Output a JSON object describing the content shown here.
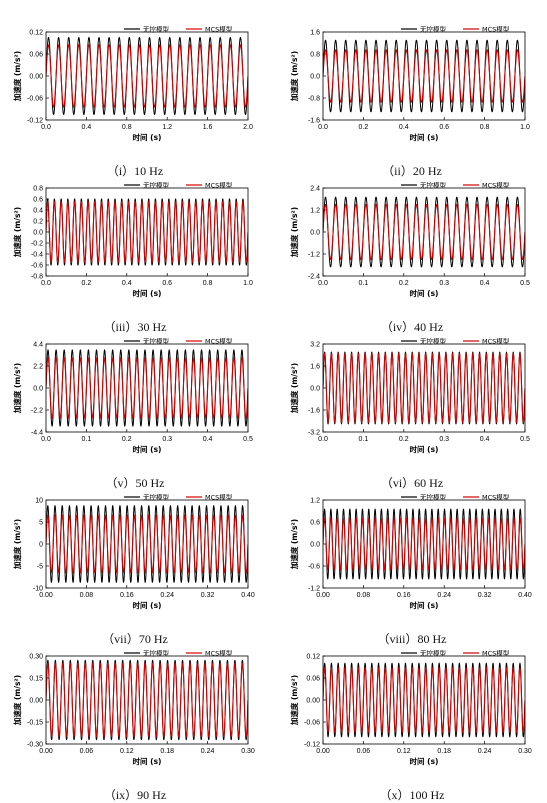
{
  "figure": {
    "legend_colors": {
      "uncontrolled": "#000000",
      "mcs": "#d40000"
    },
    "panels": [
      {
        "caption": "（i）10 Hz",
        "chart_data": {
          "type": "line",
          "title": "",
          "xlabel": "时间 (s)",
          "ylabel": "加速度 (m/s²)",
          "xlim": [
            0,
            2.0
          ],
          "ylim": [
            -0.12,
            0.12
          ],
          "xticks": [
            "0.0",
            "0.4",
            "0.8",
            "1.2",
            "1.6",
            "2.0"
          ],
          "yticks": [
            "-0.12",
            "-0.06",
            "0.00",
            "0.06",
            "0.12"
          ],
          "frequency_hz": 10,
          "series": [
            {
              "name": "无控模型",
              "color": "#000000",
              "amplitude": 0.105
            },
            {
              "name": "MCS模型",
              "color": "#d40000",
              "amplitude": 0.085
            }
          ]
        }
      },
      {
        "caption": "（ii）20 Hz",
        "chart_data": {
          "type": "line",
          "title": "",
          "xlabel": "时间 (s)",
          "ylabel": "加速度 (m/s²)",
          "xlim": [
            0,
            1.0
          ],
          "ylim": [
            -1.6,
            1.6
          ],
          "xticks": [
            "0.0",
            "0.2",
            "0.4",
            "0.6",
            "0.8",
            "1.0"
          ],
          "yticks": [
            "-1.6",
            "-0.8",
            "0.0",
            "0.8",
            "1.6"
          ],
          "frequency_hz": 20,
          "series": [
            {
              "name": "无控模型",
              "color": "#000000",
              "amplitude": 1.3
            },
            {
              "name": "MCS模型",
              "color": "#d40000",
              "amplitude": 0.95
            }
          ]
        }
      },
      {
        "caption": "（iii）30 Hz",
        "chart_data": {
          "type": "line",
          "title": "",
          "xlabel": "时间 (s)",
          "ylabel": "加速度 (m/s²)",
          "xlim": [
            0,
            1.0
          ],
          "ylim": [
            -0.8,
            0.8
          ],
          "xticks": [
            "0.0",
            "0.2",
            "0.4",
            "0.6",
            "0.8",
            "1.0"
          ],
          "yticks": [
            "-0.8",
            "-0.6",
            "-0.4",
            "-0.2",
            "0.0",
            "0.2",
            "0.4",
            "0.6",
            "0.8"
          ],
          "frequency_hz": 30,
          "series": [
            {
              "name": "无控模型",
              "color": "#000000",
              "amplitude": 0.6
            },
            {
              "name": "MCS模型",
              "color": "#d40000",
              "amplitude": 0.55
            }
          ]
        }
      },
      {
        "caption": "（iv）40 Hz",
        "chart_data": {
          "type": "line",
          "title": "",
          "xlabel": "时间 (s)",
          "ylabel": "加速度 (m/s²)",
          "xlim": [
            0,
            0.5
          ],
          "ylim": [
            -2.4,
            2.4
          ],
          "xticks": [
            "0.0",
            "0.1",
            "0.2",
            "0.3",
            "0.4",
            "0.5"
          ],
          "yticks": [
            "-2.4",
            "-1.2",
            "0.0",
            "1.2",
            "2.4"
          ],
          "frequency_hz": 40,
          "series": [
            {
              "name": "无控模型",
              "color": "#000000",
              "amplitude": 1.9
            },
            {
              "name": "MCS模型",
              "color": "#d40000",
              "amplitude": 1.5
            }
          ]
        }
      },
      {
        "caption": "（v）50 Hz",
        "chart_data": {
          "type": "line",
          "title": "",
          "xlabel": "时间 (s)",
          "ylabel": "加速度 (m/s²)",
          "xlim": [
            0,
            0.5
          ],
          "ylim": [
            -4.4,
            4.4
          ],
          "xticks": [
            "0.0",
            "0.1",
            "0.2",
            "0.3",
            "0.4",
            "0.5"
          ],
          "yticks": [
            "-4.4",
            "-2.2",
            "0.0",
            "2.2",
            "4.4"
          ],
          "frequency_hz": 50,
          "series": [
            {
              "name": "无控模型",
              "color": "#000000",
              "amplitude": 3.8
            },
            {
              "name": "MCS模型",
              "color": "#d40000",
              "amplitude": 3.0
            }
          ]
        }
      },
      {
        "caption": "（vi）60 Hz",
        "chart_data": {
          "type": "line",
          "title": "",
          "xlabel": "时间 (s)",
          "ylabel": "加速度 (m/s²)",
          "xlim": [
            0,
            0.5
          ],
          "ylim": [
            -3.2,
            3.2
          ],
          "xticks": [
            "0.0",
            "0.1",
            "0.2",
            "0.3",
            "0.4",
            "0.5"
          ],
          "yticks": [
            "-3.2",
            "-1.6",
            "0.0",
            "1.6",
            "3.2"
          ],
          "frequency_hz": 60,
          "series": [
            {
              "name": "无控模型",
              "color": "#000000",
              "amplitude": 2.6
            },
            {
              "name": "MCS模型",
              "color": "#d40000",
              "amplitude": 2.5
            }
          ]
        }
      },
      {
        "caption": "（vii）70 Hz",
        "chart_data": {
          "type": "line",
          "title": "",
          "xlabel": "时间 (s)",
          "ylabel": "加速度 (m/s²)",
          "xlim": [
            0,
            0.4
          ],
          "ylim": [
            -10,
            10
          ],
          "xticks": [
            "0.00",
            "0.08",
            "0.16",
            "0.24",
            "0.32",
            "0.40"
          ],
          "yticks": [
            "-10",
            "-5",
            "0",
            "5",
            "10"
          ],
          "frequency_hz": 70,
          "series": [
            {
              "name": "无控模型",
              "color": "#000000",
              "amplitude": 8.7
            },
            {
              "name": "MCS模型",
              "color": "#d40000",
              "amplitude": 6.5
            }
          ]
        }
      },
      {
        "caption": "（viii）80 Hz",
        "chart_data": {
          "type": "line",
          "title": "",
          "xlabel": "时间 (s)",
          "ylabel": "加速度 (m/s²)",
          "xlim": [
            0,
            0.4
          ],
          "ylim": [
            -1.2,
            1.2
          ],
          "xticks": [
            "0.00",
            "0.08",
            "0.16",
            "0.24",
            "0.32",
            "0.40"
          ],
          "yticks": [
            "-1.2",
            "-0.6",
            "0.0",
            "0.6",
            "1.2"
          ],
          "frequency_hz": 80,
          "series": [
            {
              "name": "无控模型",
              "color": "#000000",
              "amplitude": 0.95
            },
            {
              "name": "MCS模型",
              "color": "#d40000",
              "amplitude": 0.7
            }
          ]
        }
      },
      {
        "caption": "（ix）90 Hz",
        "chart_data": {
          "type": "line",
          "title": "",
          "xlabel": "时间 (s)",
          "ylabel": "加速度 (m/s²)",
          "xlim": [
            0,
            0.3
          ],
          "ylim": [
            -0.3,
            0.3
          ],
          "xticks": [
            "0.00",
            "0.06",
            "0.12",
            "0.18",
            "0.24",
            "0.30"
          ],
          "yticks": [
            "-0.30",
            "-0.15",
            "0.00",
            "0.15",
            "0.30"
          ],
          "frequency_hz": 90,
          "series": [
            {
              "name": "无控模型",
              "color": "#000000",
              "amplitude": 0.27
            },
            {
              "name": "MCS模型",
              "color": "#d40000",
              "amplitude": 0.25
            }
          ]
        }
      },
      {
        "caption": "（x）100 Hz",
        "chart_data": {
          "type": "line",
          "title": "",
          "xlabel": "时间 (s)",
          "ylabel": "加速度 (m/s²)",
          "xlim": [
            0,
            0.3
          ],
          "ylim": [
            -0.12,
            0.12
          ],
          "xticks": [
            "0.00",
            "0.06",
            "0.12",
            "0.18",
            "0.24",
            "0.30"
          ],
          "yticks": [
            "-0.12",
            "-0.06",
            "0.00",
            "0.06",
            "0.12"
          ],
          "frequency_hz": 100,
          "series": [
            {
              "name": "无控模型",
              "color": "#000000",
              "amplitude": 0.1
            },
            {
              "name": "MCS模型",
              "color": "#d40000",
              "amplitude": 0.088
            }
          ]
        }
      }
    ]
  }
}
